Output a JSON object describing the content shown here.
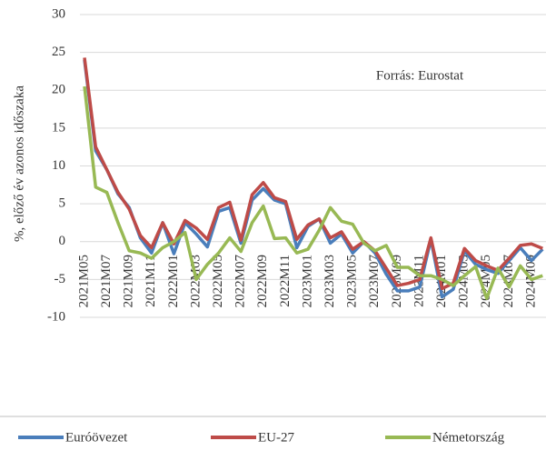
{
  "chart_data": {
    "type": "line",
    "y_label": "%, előző év azonos időszaka",
    "annotation": "Forrás: Eurostat",
    "categories": [
      "2021M05",
      null,
      "2021M07",
      null,
      "2021M09",
      null,
      "2021M11",
      null,
      "2022M01",
      null,
      "2022M03",
      null,
      "2022M05",
      null,
      "2022M07",
      null,
      "2022M09",
      null,
      "2022M11",
      null,
      "2023M01",
      null,
      "2023M03",
      null,
      "2023M05",
      null,
      "2023M07",
      null,
      "2023M09",
      null,
      "2023M11",
      null,
      "2024M01",
      null,
      "2024M03",
      null,
      "2024M05",
      null,
      "2024M07",
      null,
      "2024M09",
      null
    ],
    "series": [
      {
        "name": "Euróövezet",
        "color": "#4a7ebb",
        "values": [
          24,
          12,
          9.5,
          6.3,
          4.5,
          0.5,
          -1.5,
          2.5,
          -1.6,
          2.5,
          1,
          -0.7,
          4,
          4.5,
          -0.2,
          5.5,
          7,
          5.5,
          5,
          -0.8,
          2,
          3,
          -0.2,
          1,
          -1.5,
          0,
          -1.5,
          -4.3,
          -6.5,
          -6.5,
          -6,
          0.3,
          -7.3,
          -6.3,
          -1.2,
          -3,
          -3.7,
          -4.2,
          -2.5,
          -0.8,
          -2.5,
          -1
        ]
      },
      {
        "name": "EU-27",
        "color": "#be4b48",
        "values": [
          24.3,
          12.5,
          9.5,
          6.5,
          4.3,
          0.8,
          -0.8,
          2.5,
          -0.3,
          2.8,
          1.8,
          0.3,
          4.5,
          5.2,
          0.2,
          6.2,
          7.8,
          5.8,
          5.3,
          0.3,
          2.2,
          3,
          0.5,
          1.3,
          -1,
          0,
          -1.2,
          -3.5,
          -5.8,
          -5.5,
          -5,
          0.5,
          -6.2,
          -5.5,
          -0.9,
          -2.5,
          -3.2,
          -3.8,
          -2.2,
          -0.5,
          -0.3,
          -0.9
        ]
      },
      {
        "name": "Németország",
        "color": "#98b954",
        "values": [
          20.5,
          7.2,
          6.5,
          2.5,
          -1.2,
          -1.5,
          -2.2,
          -0.8,
          0,
          1.2,
          -5,
          -3,
          -1.5,
          0.5,
          -1.3,
          2.5,
          4.7,
          0.4,
          0.5,
          -1.5,
          -1,
          1.5,
          4.5,
          2.7,
          2.3,
          -0.2,
          -1.2,
          -0.5,
          -3.4,
          -3.4,
          -4.5,
          -4.5,
          -5,
          -5.8,
          -4.5,
          -3.3,
          -7.5,
          -3.5,
          -6,
          -3.2,
          -5,
          -4.5
        ]
      }
    ],
    "ylim": [
      -10,
      30
    ],
    "yticks": [
      -10,
      -5,
      0,
      5,
      10,
      15,
      20,
      25,
      30
    ],
    "grid": true,
    "legend": "bottom"
  }
}
